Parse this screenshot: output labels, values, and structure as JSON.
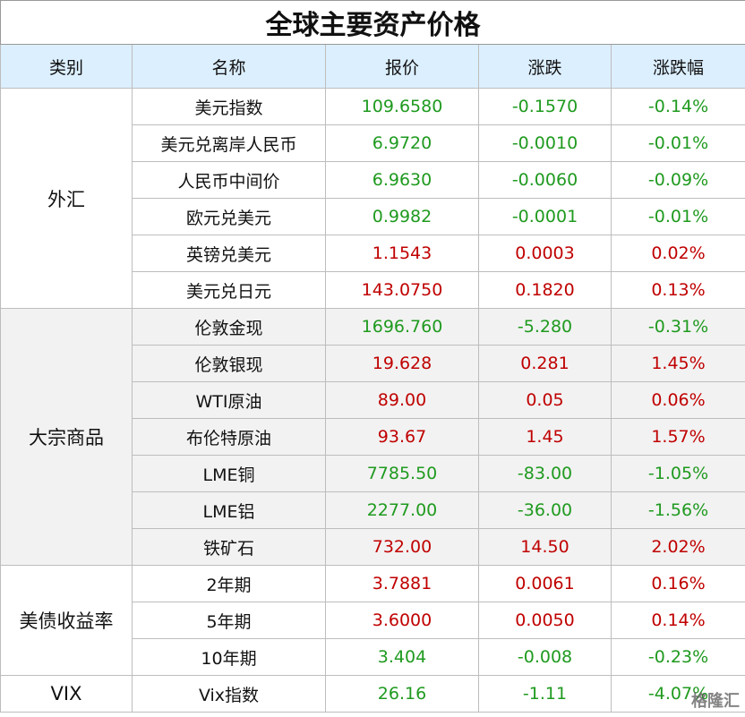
{
  "title": "全球主要资产价格",
  "header": [
    "类别",
    "名称",
    "报价",
    "涨跌",
    "涨跌幅"
  ],
  "groups": [
    {
      "name": "外汇",
      "background": "#ffffff",
      "rows": [
        {
          "name": "美元指数",
          "price": "109.6580",
          "change": "-0.1570",
          "pct": "-0.14%",
          "color": "#1f9a1f"
        },
        {
          "name": "美元兑离岸人民币",
          "price": "6.9720",
          "change": "-0.0010",
          "pct": "-0.01%",
          "color": "#1f9a1f"
        },
        {
          "name": "人民币中间价",
          "price": "6.9630",
          "change": "-0.0060",
          "pct": "-0.09%",
          "color": "#1f9a1f"
        },
        {
          "name": "欧元兑美元",
          "price": "0.9982",
          "change": "-0.0001",
          "pct": "-0.01%",
          "color": "#1f9a1f"
        },
        {
          "name": "英镑兑美元",
          "price": "1.1543",
          "change": "0.0003",
          "pct": "0.02%",
          "color": "#c00000"
        },
        {
          "name": "美元兑日元",
          "price": "143.0750",
          "change": "0.1820",
          "pct": "0.13%",
          "color": "#c00000"
        }
      ]
    },
    {
      "name": "大宗商品",
      "background": "#f2f2f2",
      "rows": [
        {
          "name": "伦敦金现",
          "price": "1696.760",
          "change": "-5.280",
          "pct": "-0.31%",
          "color": "#1f9a1f"
        },
        {
          "name": "伦敦银现",
          "price": "19.628",
          "change": "0.281",
          "pct": "1.45%",
          "color": "#c00000"
        },
        {
          "name": "WTI原油",
          "price": "89.00",
          "change": "0.05",
          "pct": "0.06%",
          "color": "#c00000"
        },
        {
          "name": "布伦特原油",
          "price": "93.67",
          "change": "1.45",
          "pct": "1.57%",
          "color": "#c00000"
        },
        {
          "name": "LME铜",
          "price": "7785.50",
          "change": "-83.00",
          "pct": "-1.05%",
          "color": "#1f9a1f"
        },
        {
          "name": "LME铝",
          "price": "2277.00",
          "change": "-36.00",
          "pct": "-1.56%",
          "color": "#1f9a1f"
        },
        {
          "name": "铁矿石",
          "price": "732.00",
          "change": "14.50",
          "pct": "2.02%",
          "color": "#c00000"
        }
      ]
    },
    {
      "name": "美债收益率",
      "background": "#ffffff",
      "rows": [
        {
          "name": "2年期",
          "price": "3.7881",
          "change": "0.0061",
          "pct": "0.16%",
          "color": "#c00000"
        },
        {
          "name": "5年期",
          "price": "3.6000",
          "change": "0.0050",
          "pct": "0.14%",
          "color": "#c00000"
        },
        {
          "name": "10年期",
          "price": "3.404",
          "change": "-0.008",
          "pct": "-0.23%",
          "color": "#1f9a1f"
        }
      ]
    },
    {
      "name": "VIX",
      "background": "#ffffff",
      "rows": [
        {
          "name": "Vix指数",
          "price": "26.16",
          "change": "-1.11",
          "pct": "-4.07%",
          "color": "#1f9a1f"
        }
      ]
    }
  ],
  "watermark": "格隆汇"
}
